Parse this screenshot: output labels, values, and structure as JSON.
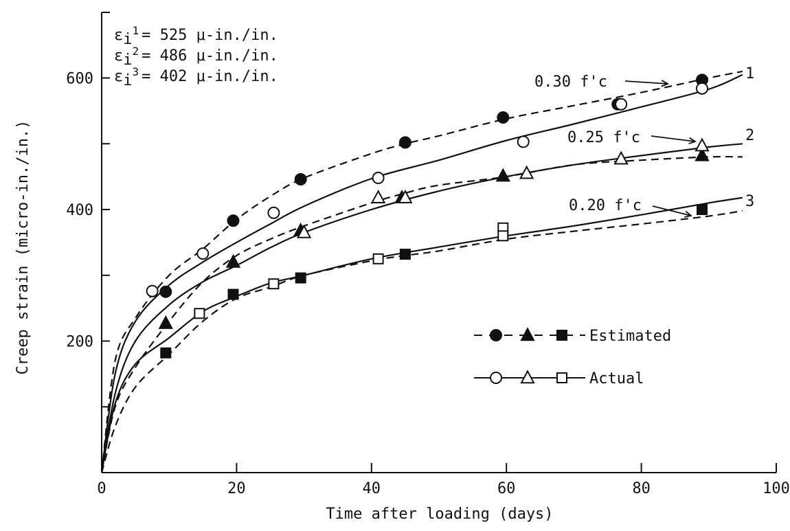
{
  "chart_data": {
    "type": "line",
    "title": "",
    "xlabel": "Time after loading (days)",
    "ylabel": "Creep strain (micro-in./in.)",
    "xlim": [
      0,
      100
    ],
    "ylim": [
      0,
      700
    ],
    "x_ticks": [
      0,
      20,
      40,
      60,
      80,
      100
    ],
    "x_tick_labels": [
      "0",
      "20",
      "40",
      "60",
      "80",
      "100"
    ],
    "y_ticks": [
      100,
      200,
      300,
      400,
      500,
      600
    ],
    "y_tick_labels": [
      "200",
      "400",
      "600"
    ],
    "y_labeled_ticks": [
      200,
      400,
      600
    ],
    "grid": false,
    "legend_position": "right",
    "initial_strains": [
      {
        "symbol": "ε",
        "sub": "i",
        "sub2": "1",
        "value": "= 525 μ-in./in."
      },
      {
        "symbol": "ε",
        "sub": "i",
        "sub2": "2",
        "value": "= 486 μ-in./in."
      },
      {
        "symbol": "ε",
        "sub": "i",
        "sub2": "3",
        "value": "= 402 μ-in./in."
      }
    ],
    "stress_labels": [
      {
        "text": "0.30 f'c",
        "curve": "1"
      },
      {
        "text": "0.25 f'c",
        "curve": "2"
      },
      {
        "text": "0.20 f'c",
        "curve": "3"
      }
    ],
    "legend": [
      {
        "label": "Estimated",
        "line": "dashed",
        "fill": "filled"
      },
      {
        "label": "Actual",
        "line": "solid",
        "fill": "open"
      }
    ],
    "series": [
      {
        "curve": "1",
        "marker": "circle",
        "kind": "estimated",
        "line": "dashed",
        "line_points": [
          [
            0,
            0
          ],
          [
            2,
            170
          ],
          [
            5,
            235
          ],
          [
            10,
            300
          ],
          [
            15,
            340
          ],
          [
            20,
            385
          ],
          [
            25,
            420
          ],
          [
            30,
            448
          ],
          [
            40,
            485
          ],
          [
            45,
            500
          ],
          [
            50,
            512
          ],
          [
            60,
            538
          ],
          [
            70,
            558
          ],
          [
            80,
            578
          ],
          [
            90,
            600
          ],
          [
            95,
            610
          ]
        ],
        "points": [
          [
            9.5,
            275
          ],
          [
            19.5,
            383
          ],
          [
            29.5,
            446
          ],
          [
            45,
            502
          ],
          [
            59.5,
            540
          ],
          [
            76.5,
            560
          ],
          [
            89,
            597
          ]
        ]
      },
      {
        "curve": "1",
        "marker": "circle",
        "kind": "actual",
        "line": "solid",
        "line_points": [
          [
            0,
            0
          ],
          [
            2,
            150
          ],
          [
            5,
            230
          ],
          [
            10,
            285
          ],
          [
            15,
            320
          ],
          [
            20,
            350
          ],
          [
            25,
            378
          ],
          [
            30,
            405
          ],
          [
            40,
            447
          ],
          [
            50,
            475
          ],
          [
            60,
            505
          ],
          [
            70,
            530
          ],
          [
            80,
            556
          ],
          [
            90,
            583
          ],
          [
            95,
            605
          ]
        ],
        "points": [
          [
            7.5,
            276
          ],
          [
            15,
            333
          ],
          [
            25.5,
            395
          ],
          [
            41,
            448
          ],
          [
            62.5,
            503
          ],
          [
            77,
            560
          ],
          [
            89,
            584
          ]
        ]
      },
      {
        "curve": "2",
        "marker": "triangle",
        "kind": "estimated",
        "line": "dashed",
        "line_points": [
          [
            0,
            0
          ],
          [
            2,
            100
          ],
          [
            5,
            160
          ],
          [
            10,
            230
          ],
          [
            15,
            290
          ],
          [
            20,
            330
          ],
          [
            25,
            355
          ],
          [
            30,
            375
          ],
          [
            40,
            410
          ],
          [
            45,
            425
          ],
          [
            50,
            437
          ],
          [
            60,
            450
          ],
          [
            70,
            468
          ],
          [
            80,
            475
          ],
          [
            90,
            480
          ],
          [
            95,
            480
          ]
        ],
        "points": [
          [
            9.5,
            227
          ],
          [
            19.5,
            320
          ],
          [
            29.5,
            368
          ],
          [
            44.5,
            418
          ],
          [
            59.5,
            451
          ],
          [
            89,
            482
          ]
        ]
      },
      {
        "curve": "2",
        "marker": "triangle",
        "kind": "actual",
        "line": "solid",
        "line_points": [
          [
            0,
            0
          ],
          [
            2,
            120
          ],
          [
            5,
            200
          ],
          [
            10,
            255
          ],
          [
            15,
            290
          ],
          [
            20,
            315
          ],
          [
            25,
            342
          ],
          [
            30,
            365
          ],
          [
            40,
            400
          ],
          [
            50,
            428
          ],
          [
            60,
            450
          ],
          [
            70,
            468
          ],
          [
            80,
            482
          ],
          [
            90,
            495
          ],
          [
            95,
            500
          ]
        ],
        "points": [
          [
            30,
            365
          ],
          [
            41,
            418
          ],
          [
            45,
            418
          ],
          [
            63,
            455
          ],
          [
            77,
            477
          ],
          [
            89,
            497
          ]
        ]
      },
      {
        "curve": "3",
        "marker": "square",
        "kind": "estimated",
        "line": "dashed",
        "line_points": [
          [
            0,
            0
          ],
          [
            2,
            70
          ],
          [
            5,
            130
          ],
          [
            10,
            180
          ],
          [
            15,
            230
          ],
          [
            20,
            265
          ],
          [
            25,
            282
          ],
          [
            30,
            300
          ],
          [
            40,
            322
          ],
          [
            45,
            330
          ],
          [
            50,
            337
          ],
          [
            60,
            355
          ],
          [
            70,
            367
          ],
          [
            80,
            378
          ],
          [
            90,
            390
          ],
          [
            95,
            398
          ]
        ],
        "points": [
          [
            9.5,
            182
          ],
          [
            19.5,
            271
          ],
          [
            29.5,
            296
          ],
          [
            45,
            332
          ],
          [
            89,
            400
          ]
        ]
      },
      {
        "curve": "3",
        "marker": "square",
        "kind": "actual",
        "line": "solid",
        "line_points": [
          [
            0,
            0
          ],
          [
            2,
            105
          ],
          [
            5,
            165
          ],
          [
            10,
            205
          ],
          [
            15,
            245
          ],
          [
            20,
            268
          ],
          [
            25,
            288
          ],
          [
            30,
            300
          ],
          [
            40,
            325
          ],
          [
            50,
            343
          ],
          [
            60,
            360
          ],
          [
            70,
            375
          ],
          [
            80,
            392
          ],
          [
            90,
            410
          ],
          [
            95,
            418
          ]
        ],
        "points": [
          [
            14.5,
            242
          ],
          [
            25.5,
            287
          ],
          [
            41,
            325
          ],
          [
            59.5,
            372
          ],
          [
            59.5,
            360
          ]
        ]
      }
    ]
  }
}
